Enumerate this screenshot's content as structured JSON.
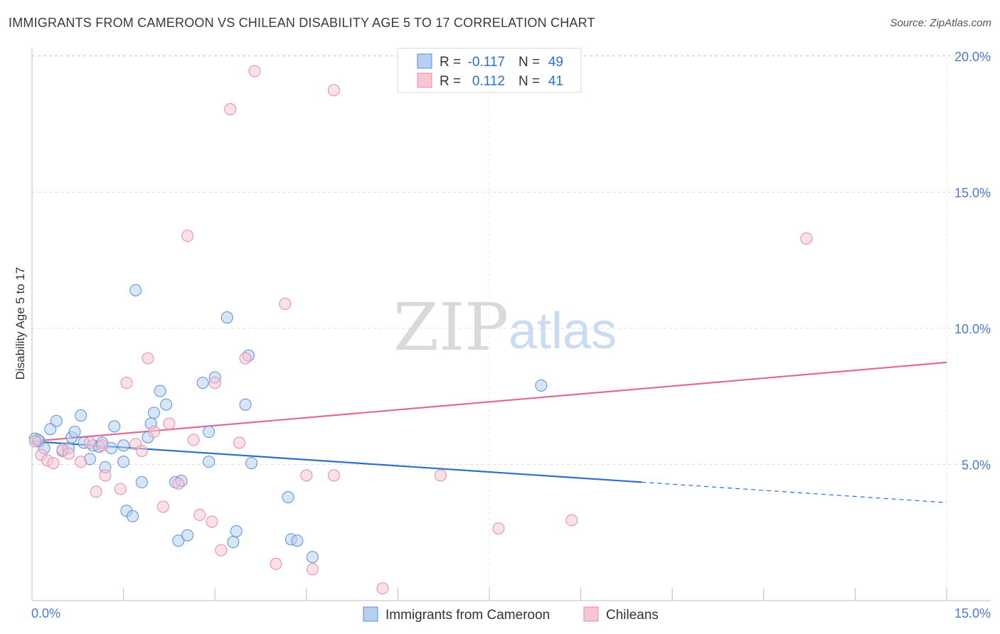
{
  "title": "IMMIGRANTS FROM CAMEROON VS CHILEAN DISABILITY AGE 5 TO 17 CORRELATION CHART",
  "source": "Source: ZipAtlas.com",
  "watermark": {
    "part1": "ZIP",
    "part2": "atlas"
  },
  "legend": {
    "rows": [
      {
        "r_label": "R =",
        "r_value": "-0.117",
        "n_label": "N =",
        "n_value": "49"
      },
      {
        "r_label": "R =",
        "r_value": "0.112",
        "n_label": "N =",
        "n_value": "41"
      }
    ]
  },
  "bottom_legend": [
    "Immigrants from Cameroon",
    "Chileans"
  ],
  "chart_data": {
    "type": "scatter",
    "title": "IMMIGRANTS FROM CAMEROON VS CHILEAN DISABILITY AGE 5 TO 17 CORRELATION CHART",
    "xlabel": "",
    "ylabel": "Disability Age 5 to 17",
    "xlim": [
      0,
      15
    ],
    "ylim": [
      0,
      20.5
    ],
    "x_tick_labels": [
      "0.0%",
      "15.0%"
    ],
    "y_ticks": [
      5,
      10,
      15,
      20
    ],
    "y_tick_labels": [
      "5.0%",
      "10.0%",
      "15.0%",
      "20.0%"
    ],
    "grid": true,
    "legend_position": "top-center",
    "series": [
      {
        "name": "Immigrants from Cameroon",
        "color": "#5b8fd6",
        "fill": "#b7d0f2",
        "r": -0.117,
        "n": 49,
        "trend": {
          "x0": 0,
          "y0": 5.85,
          "x1": 10.0,
          "y1": 4.35,
          "dash_to_x": 15,
          "dash_to_y": 3.6
        },
        "points": [
          [
            0.05,
            5.95
          ],
          [
            0.12,
            5.85
          ],
          [
            0.2,
            5.6
          ],
          [
            0.3,
            6.3
          ],
          [
            0.4,
            6.6
          ],
          [
            0.5,
            5.5
          ],
          [
            0.6,
            5.6
          ],
          [
            0.65,
            6.0
          ],
          [
            0.7,
            6.2
          ],
          [
            0.8,
            6.8
          ],
          [
            0.85,
            5.8
          ],
          [
            0.95,
            5.2
          ],
          [
            1.0,
            5.7
          ],
          [
            1.1,
            5.65
          ],
          [
            1.15,
            5.8
          ],
          [
            1.2,
            4.9
          ],
          [
            1.3,
            5.6
          ],
          [
            1.35,
            6.4
          ],
          [
            1.5,
            5.1
          ],
          [
            1.5,
            5.7
          ],
          [
            1.55,
            3.3
          ],
          [
            1.65,
            3.1
          ],
          [
            1.7,
            11.4
          ],
          [
            1.8,
            4.35
          ],
          [
            1.9,
            6.0
          ],
          [
            1.95,
            6.5
          ],
          [
            2.0,
            6.9
          ],
          [
            2.1,
            7.7
          ],
          [
            2.2,
            7.2
          ],
          [
            2.35,
            4.35
          ],
          [
            2.4,
            2.2
          ],
          [
            2.45,
            4.4
          ],
          [
            2.55,
            2.4
          ],
          [
            2.8,
            8.0
          ],
          [
            2.9,
            6.2
          ],
          [
            2.9,
            5.1
          ],
          [
            3.0,
            8.2
          ],
          [
            3.2,
            10.4
          ],
          [
            3.3,
            2.15
          ],
          [
            3.35,
            2.55
          ],
          [
            3.5,
            7.2
          ],
          [
            3.55,
            9.0
          ],
          [
            3.6,
            5.05
          ],
          [
            4.2,
            3.8
          ],
          [
            4.25,
            2.25
          ],
          [
            4.35,
            2.2
          ],
          [
            4.6,
            1.6
          ],
          [
            8.35,
            7.9
          ],
          [
            0.1,
            5.9
          ]
        ]
      },
      {
        "name": "Chileans",
        "color": "#e88aa8",
        "fill": "#f6c6d5",
        "r": 0.112,
        "n": 41,
        "trend": {
          "x0": 0,
          "y0": 5.85,
          "x1": 15,
          "y1": 8.75
        },
        "points": [
          [
            0.05,
            5.85
          ],
          [
            0.15,
            5.35
          ],
          [
            0.25,
            5.15
          ],
          [
            0.35,
            5.05
          ],
          [
            0.5,
            5.55
          ],
          [
            0.6,
            5.4
          ],
          [
            0.8,
            5.1
          ],
          [
            0.95,
            5.8
          ],
          [
            1.05,
            4.0
          ],
          [
            1.15,
            5.7
          ],
          [
            1.2,
            4.6
          ],
          [
            1.45,
            4.1
          ],
          [
            1.55,
            8.0
          ],
          [
            1.7,
            5.75
          ],
          [
            1.8,
            5.5
          ],
          [
            1.9,
            8.9
          ],
          [
            2.0,
            6.2
          ],
          [
            2.15,
            3.45
          ],
          [
            2.25,
            6.5
          ],
          [
            2.4,
            4.3
          ],
          [
            2.55,
            13.4
          ],
          [
            2.65,
            5.9
          ],
          [
            2.75,
            3.15
          ],
          [
            2.95,
            2.9
          ],
          [
            3.0,
            8.0
          ],
          [
            3.1,
            1.85
          ],
          [
            3.25,
            18.05
          ],
          [
            3.4,
            5.8
          ],
          [
            3.5,
            8.9
          ],
          [
            3.65,
            19.45
          ],
          [
            4.0,
            1.35
          ],
          [
            4.15,
            10.9
          ],
          [
            4.5,
            4.6
          ],
          [
            4.6,
            1.15
          ],
          [
            4.95,
            4.6
          ],
          [
            4.95,
            18.75
          ],
          [
            5.75,
            0.45
          ],
          [
            6.7,
            4.6
          ],
          [
            7.65,
            2.65
          ],
          [
            8.85,
            2.95
          ],
          [
            12.7,
            13.3
          ]
        ]
      }
    ]
  }
}
